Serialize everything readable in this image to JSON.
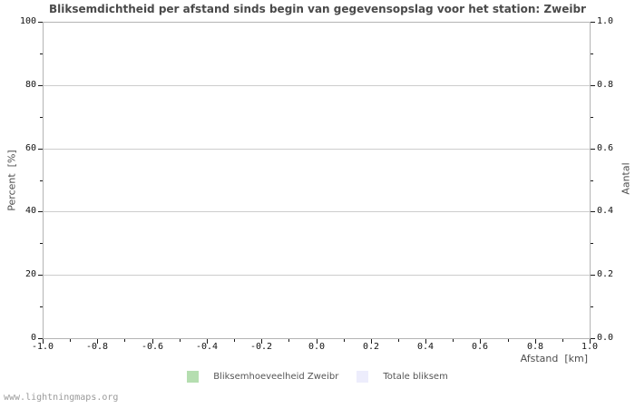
{
  "watermark": "www.lightningmaps.org",
  "colors": {
    "background": "#ffffff",
    "grid": "#cdcdcd",
    "axis_border": "#b4b4b4",
    "tick": "#1a1a1a",
    "title_text": "#4a4a4a",
    "label_text": "#4d4d4d",
    "tick_label_text": "#111111",
    "legend_text": "#555555",
    "watermark_text": "#9a9a9a"
  },
  "chart_data": {
    "type": "bar",
    "title": "Bliksemdichtheid per afstand sinds begin van gegevensopslag voor het station: Zweibr",
    "xlabel": "Afstand  [km]",
    "ylabel_left": "Percent  [%]",
    "ylabel_right": "Aantal",
    "xlim": [
      -1.0,
      1.0
    ],
    "ylim_left": [
      0,
      100
    ],
    "ylim_right": [
      0.0,
      1.0
    ],
    "x_tick_labels": [
      "-1.0",
      "-0.8",
      "-0.6",
      "-0.4",
      "-0.2",
      "0.0",
      "0.2",
      "0.4",
      "0.6",
      "0.8",
      "1.0"
    ],
    "y_left_tick_labels": [
      "100",
      "80",
      "60",
      "40",
      "20",
      "0"
    ],
    "y_right_tick_labels": [
      "1.0",
      "0.8",
      "0.6",
      "0.4",
      "0.2",
      "0.0"
    ],
    "minor_ticks_per_major_interval": 1,
    "grid": "horizontal-major-only",
    "legend_position": "bottom-center",
    "series": [
      {
        "name": "Bliksemhoeveelheid Zweibr",
        "color": "#b5deb0",
        "values": []
      },
      {
        "name": "Totale bliksem",
        "color": "#ededfc",
        "values": []
      }
    ]
  }
}
